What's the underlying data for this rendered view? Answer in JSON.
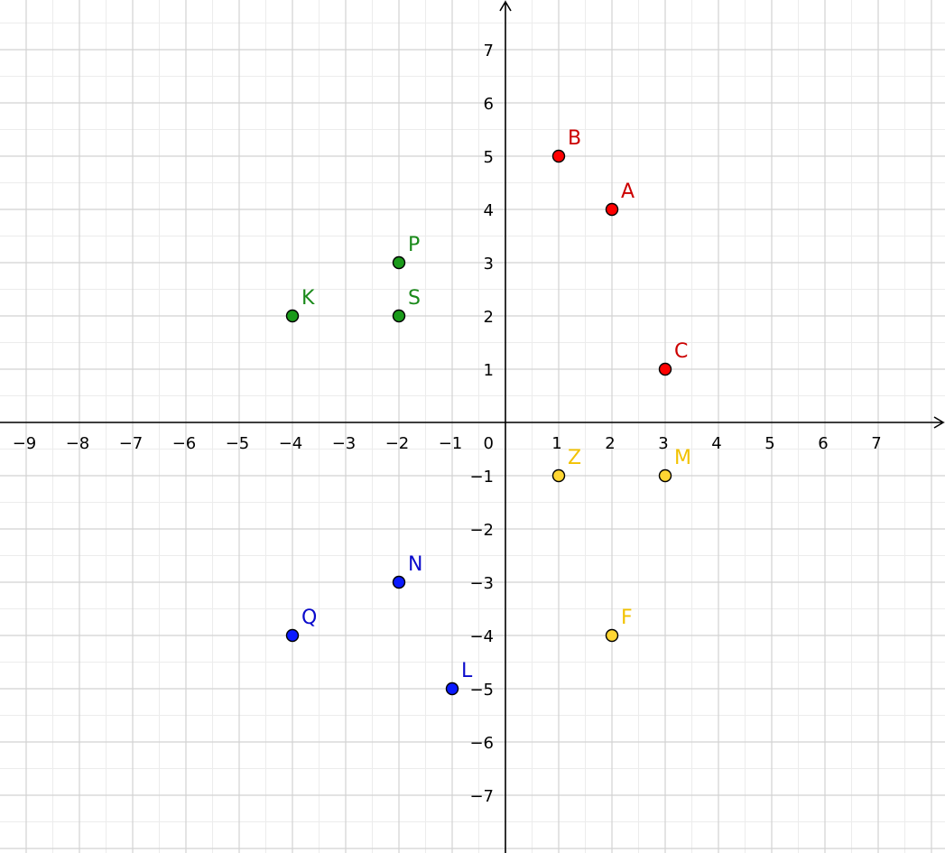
{
  "chart_data": {
    "type": "scatter",
    "xlim": [
      -9.5,
      8.15
    ],
    "ylim": [
      -8,
      7.85
    ],
    "grid": "on",
    "grid_step": 0.5,
    "x_ticks": [
      -9,
      -8,
      -7,
      -6,
      -5,
      -4,
      -3,
      -2,
      -1,
      1,
      2,
      3,
      4,
      5,
      6,
      7
    ],
    "y_ticks": [
      -7,
      -6,
      -5,
      -4,
      -3,
      -2,
      -1,
      1,
      2,
      3,
      4,
      5,
      6,
      7
    ],
    "tick_labels": {
      "x": [
        "−9",
        "−8",
        "−7",
        "−6",
        "−5",
        "−4",
        "−3",
        "−2",
        "−1",
        "1",
        "2",
        "3",
        "4",
        "5",
        "6",
        "7"
      ],
      "y": [
        "−7",
        "−6",
        "−5",
        "−4",
        "−3",
        "−2",
        "−1",
        "1",
        "2",
        "3",
        "4",
        "5",
        "6",
        "7"
      ],
      "origin": "0"
    },
    "groups": [
      {
        "color": "#ff0000",
        "label_color": "#cc0000",
        "points": [
          {
            "label": "B",
            "x": 1,
            "y": 5
          },
          {
            "label": "A",
            "x": 2,
            "y": 4
          },
          {
            "label": "C",
            "x": 3,
            "y": 1
          }
        ]
      },
      {
        "color": "#1a9a1a",
        "label_color": "#1a8a1a",
        "points": [
          {
            "label": "P",
            "x": -2,
            "y": 3
          },
          {
            "label": "K",
            "x": -4,
            "y": 2
          },
          {
            "label": "S",
            "x": -2,
            "y": 2
          }
        ]
      },
      {
        "color": "#ffd633",
        "label_color": "#f2c200",
        "points": [
          {
            "label": "Z",
            "x": 1,
            "y": -1
          },
          {
            "label": "M",
            "x": 3,
            "y": -1
          },
          {
            "label": "F",
            "x": 2,
            "y": -4
          }
        ]
      },
      {
        "color": "#0a1aff",
        "label_color": "#0a0acc",
        "points": [
          {
            "label": "N",
            "x": -2,
            "y": -3
          },
          {
            "label": "Q",
            "x": -4,
            "y": -4
          },
          {
            "label": "L",
            "x": -1,
            "y": -5
          }
        ]
      }
    ]
  }
}
